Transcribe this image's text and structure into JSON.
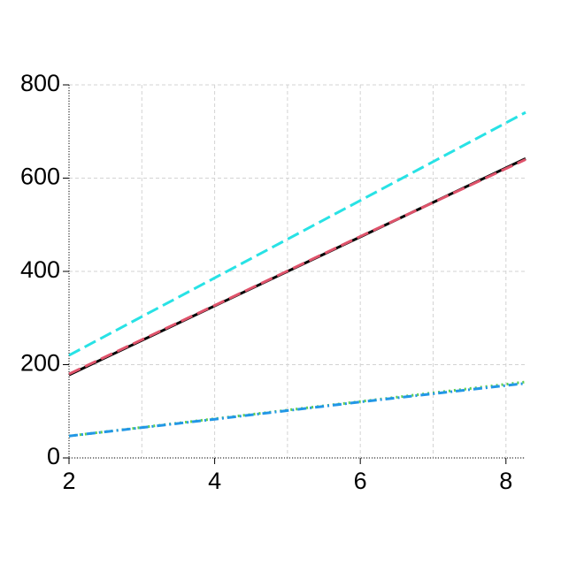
{
  "chart_data": {
    "type": "line",
    "x": [
      2,
      4,
      6,
      8.27
    ],
    "series": [
      {
        "color": "#28e2e5",
        "dash": "14 6",
        "values": [
          220,
          386,
          552,
          741
        ]
      },
      {
        "color": "#000000",
        "dash": "none",
        "values": [
          178,
          326,
          474,
          642
        ]
      },
      {
        "color": "#df536b",
        "dash": "14 6",
        "values": [
          180,
          327,
          475,
          640
        ]
      },
      {
        "color": "#61d04f",
        "dash": "2 4",
        "values": [
          47,
          84,
          121,
          163
        ]
      },
      {
        "color": "#2297e6",
        "dash": "10 4 2 4",
        "values": [
          47,
          83,
          120,
          160
        ]
      }
    ],
    "xlim": [
      2,
      8.27
    ],
    "ylim": [
      0,
      800
    ],
    "xticks": [
      2,
      4,
      6,
      8
    ],
    "yticks": [
      0,
      200,
      400,
      600,
      800
    ],
    "xgrid": [
      2,
      3,
      4,
      5,
      6,
      7,
      8
    ],
    "grid": true
  }
}
